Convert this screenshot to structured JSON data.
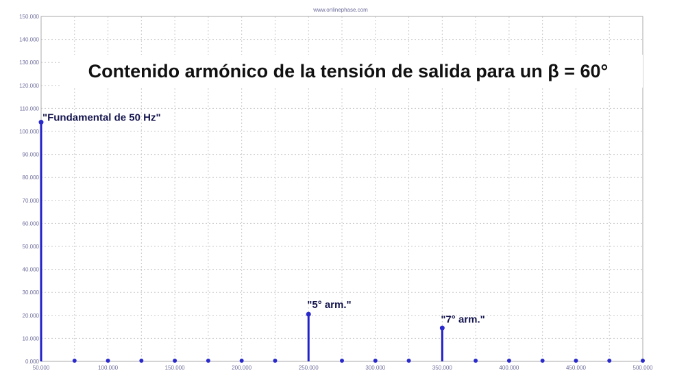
{
  "header": {
    "watermark": "www.onlinephase.com"
  },
  "chart_data": {
    "type": "bar",
    "title": "Contenido armónico de la tensión de salida para un β = 60°",
    "xlabel": "",
    "ylabel": "",
    "xlim": [
      50,
      500
    ],
    "ylim": [
      0,
      150
    ],
    "grid": true,
    "x_ticks": [
      "50.000",
      "100.000",
      "150.000",
      "200.000",
      "250.000",
      "300.000",
      "350.000",
      "400.000",
      "450.000",
      "500.000"
    ],
    "y_ticks": [
      "0.000",
      "10.000",
      "20.000",
      "30.000",
      "40.000",
      "50.000",
      "60.000",
      "70.000",
      "80.000",
      "90.000",
      "100.000",
      "110.000",
      "120.000",
      "130.000",
      "140.000",
      "150.000"
    ],
    "series": [
      {
        "x": [
          50,
          75,
          100,
          125,
          150,
          175,
          200,
          225,
          250,
          275,
          300,
          325,
          350,
          375,
          400,
          425,
          450,
          475,
          500
        ],
        "values": [
          104,
          0,
          0,
          0,
          0,
          0,
          0,
          0,
          20.5,
          0,
          0,
          0,
          14.5,
          0,
          0,
          0,
          0,
          0,
          0
        ]
      }
    ],
    "annotations": [
      {
        "text": "\"Fundamental  de 50 Hz\"",
        "x": 50,
        "y": 104
      },
      {
        "text": "\"5° arm.\"",
        "x": 250,
        "y": 20.5
      },
      {
        "text": "\"7° arm.\"",
        "x": 350,
        "y": 14.5
      }
    ]
  }
}
